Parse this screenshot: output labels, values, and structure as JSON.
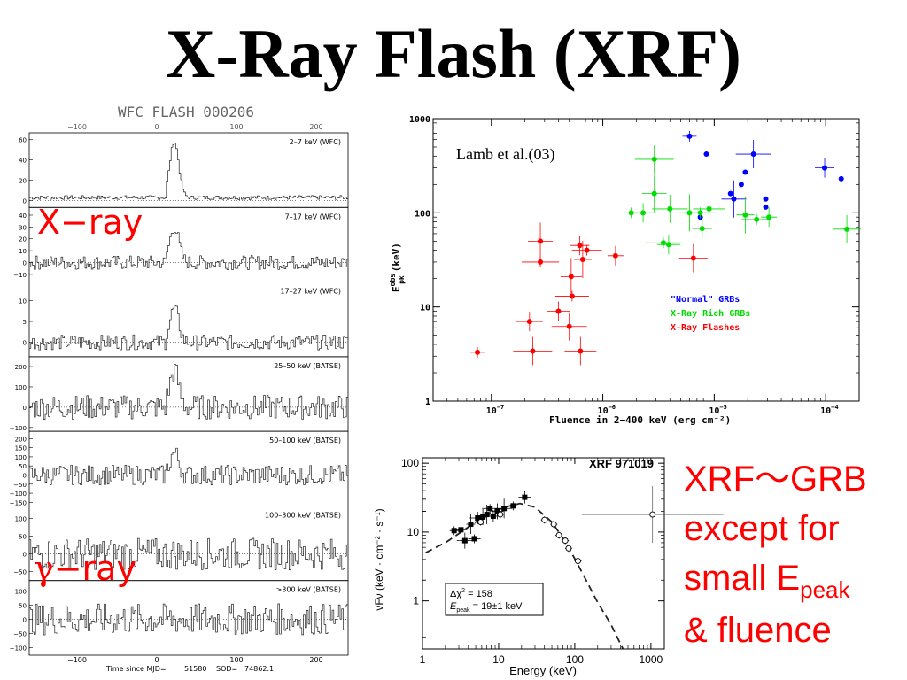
{
  "slide": {
    "title": "X-Ray Flash (XRF)",
    "label_xray": "X−ray",
    "label_gamma_symbol": "γ",
    "label_gamma_suffix": "−ray",
    "side_line1": "XRF〜GRB",
    "side_line2": "except for",
    "side_line3_main": "small E",
    "side_line3_sub": "peak",
    "side_line4": "& fluence"
  },
  "chart_data": [
    {
      "type": "line",
      "title": "WFC_FLASH_000206",
      "xlabel_prefix": "Time since MJD=",
      "xlabel_mjd": "51580",
      "xlabel_sod_label": "SOD=",
      "xlabel_sod": "74862.1",
      "x_ticks_top": [
        "−100",
        "0",
        "100",
        "200"
      ],
      "x_ticks_bottom": [
        "−100",
        "0",
        "100",
        "200"
      ],
      "xlim": [
        -160,
        240
      ],
      "panels": [
        {
          "name": "2–7 keV (WFC)",
          "yticks": [
            "60",
            "40",
            "20",
            "0"
          ],
          "ylim": [
            -5,
            65
          ],
          "noise": 2,
          "peak": 55,
          "base": 3
        },
        {
          "name": "7–17 keV (WFC)",
          "yticks": [
            "40",
            "30",
            "20",
            "10",
            "0",
            "−10"
          ],
          "ylim": [
            -15,
            45
          ],
          "noise": 6,
          "peak": 30,
          "base": 0
        },
        {
          "name": "17–27 keV (WFC)",
          "yticks": [
            "10",
            "5",
            "0"
          ],
          "ylim": [
            -3,
            14
          ],
          "noise": 1.8,
          "peak": 8,
          "base": 0
        },
        {
          "name": "25–50 keV (BATSE)",
          "yticks": [
            "200",
            "100",
            "0",
            "−100"
          ],
          "ylim": [
            -110,
            240
          ],
          "noise": 60,
          "peak": 180,
          "base": 0
        },
        {
          "name": "50–100 keV (BATSE)",
          "yticks": [
            "200",
            "150",
            "100",
            "50",
            "0",
            "−50",
            "−100",
            "−150"
          ],
          "ylim": [
            -160,
            230
          ],
          "noise": 55,
          "peak": 120,
          "base": 0
        },
        {
          "name": "100–300 keV (BATSE)",
          "yticks": [
            "100",
            "50",
            "0",
            "−50"
          ],
          "ylim": [
            -70,
            130
          ],
          "noise": 45,
          "peak": 0,
          "base": 0
        },
        {
          "name": ">300 keV (BATSE)",
          "yticks": [
            "100",
            "50",
            "0",
            "−50",
            "−100"
          ],
          "ylim": [
            -120,
            130
          ],
          "noise": 55,
          "peak": 0,
          "base": 0
        }
      ]
    },
    {
      "type": "scatter",
      "annotation": "Lamb et  al.(03)",
      "xlabel": "Fluence in 2−400 keV (erg cm⁻²)",
      "ylabel": "E",
      "ylabel_sup": "obs",
      "ylabel_sub": "pk",
      "ylabel_unit": "(keV)",
      "log_x": true,
      "log_y": true,
      "xlim": [
        3e-08,
        0.0002
      ],
      "ylim": [
        1,
        1000
      ],
      "x_ticks": [
        {
          "v": 1e-07,
          "base": "10",
          "exp": "−7"
        },
        {
          "v": 1e-06,
          "base": "10",
          "exp": "−6"
        },
        {
          "v": 1e-05,
          "base": "10",
          "exp": "−5"
        },
        {
          "v": 0.0001,
          "base": "10",
          "exp": "−4"
        }
      ],
      "y_ticks": [
        {
          "v": 1,
          "label": "1"
        },
        {
          "v": 10,
          "label": "10"
        },
        {
          "v": 100,
          "label": "100"
        },
        {
          "v": 1000,
          "label": "1000"
        }
      ],
      "series": [
        {
          "name": "\"Normal\" GRBs",
          "color": "#0000ff",
          "points": [
            [
              6e-06,
              650,
              7.5e-06,
              400
            ],
            [
              8.5e-06,
              420,
              9.3e-06,
              400
            ],
            [
              1.4e-05,
              160,
              1.52e-05,
              160
            ],
            [
              1.5e-05,
              140,
              1.6e-05,
              140
            ],
            [
              1.75e-05,
              200,
              1.85e-05,
              200
            ],
            [
              1.9e-05,
              270,
              2e-05,
              270
            ],
            [
              2.25e-05,
              420,
              2.4e-05,
              420
            ],
            [
              2.9e-05,
              140,
              3e-05,
              140
            ],
            [
              2.9e-05,
              115,
              3e-05,
              115
            ],
            [
              9.8e-05,
              300,
              0.000102,
              300
            ],
            [
              0.000138,
              230,
              0.000142,
              230
            ],
            [
              7.5e-06,
              90,
              7.8e-06,
              90
            ]
          ]
        },
        {
          "name": "X-Ray Rich GRBs",
          "color": "#00dd00",
          "points": [
            [
              1.8e-06,
              100
            ],
            [
              2.3e-06,
              100
            ],
            [
              2.9e-06,
              370
            ],
            [
              2.9e-06,
              160
            ],
            [
              3.5e-06,
              48
            ],
            [
              3.9e-06,
              46
            ],
            [
              4e-06,
              110
            ],
            [
              6e-06,
              100
            ],
            [
              7.5e-06,
              100
            ],
            [
              7.8e-06,
              68
            ],
            [
              9e-06,
              110
            ],
            [
              1.9e-05,
              95
            ],
            [
              2.4e-05,
              85
            ],
            [
              3.1e-05,
              90
            ],
            [
              0.000155,
              67
            ]
          ]
        },
        {
          "name": "X-Ray Flashes",
          "color": "#ff0000",
          "points": [
            [
              7.5e-08,
              3.3
            ],
            [
              2.2e-07,
              7
            ],
            [
              2.35e-07,
              3.4
            ],
            [
              2.75e-07,
              50
            ],
            [
              2.75e-07,
              30
            ],
            [
              4e-07,
              9
            ],
            [
              5e-07,
              6.2
            ],
            [
              5.2e-07,
              21
            ],
            [
              5.3e-07,
              13
            ],
            [
              6.2e-07,
              45
            ],
            [
              6.3e-07,
              3.4
            ],
            [
              6.6e-07,
              32
            ],
            [
              7.2e-07,
              40
            ],
            [
              1.3e-06,
              35
            ],
            [
              6.5e-06,
              33
            ]
          ]
        }
      ]
    },
    {
      "type": "scatter",
      "title": "XRF 971019",
      "xlabel": "Energy (keV)",
      "ylabel": "νFν  (keV · cm⁻² · s⁻¹)",
      "log_x": true,
      "log_y": true,
      "xlim": [
        1,
        1500
      ],
      "ylim": [
        0.2,
        120
      ],
      "x_ticks": [
        {
          "v": 1,
          "label": "1"
        },
        {
          "v": 10,
          "label": "10"
        },
        {
          "v": 100,
          "label": "100"
        },
        {
          "v": 1000,
          "label": "1000"
        }
      ],
      "y_ticks": [
        {
          "v": 1,
          "label": "1"
        },
        {
          "v": 10,
          "label": "10"
        },
        {
          "v": 100,
          "label": "100"
        }
      ],
      "legend_line1_a": "Δχ",
      "legend_line1_b": "2",
      "legend_line1_c": " = 158",
      "legend_line2_a": "E",
      "legend_line2_b": "peak",
      "legend_line2_c": " = 19±1 keV",
      "series": [
        {
          "name": "filled",
          "points": [
            [
              2.6,
              10.5
            ],
            [
              3.2,
              10.8
            ],
            [
              3.6,
              7.5
            ],
            [
              4.3,
              13
            ],
            [
              4.8,
              8
            ],
            [
              5.3,
              16
            ],
            [
              6.2,
              16.5
            ],
            [
              7.0,
              18
            ],
            [
              7.7,
              22
            ],
            [
              8.5,
              17
            ],
            [
              9.6,
              20
            ],
            [
              11.8,
              22
            ],
            [
              15.5,
              24
            ],
            [
              22,
              32
            ]
          ]
        },
        {
          "name": "open",
          "points": [
            [
              5.8,
              14
            ],
            [
              10.5,
              18
            ],
            [
              40,
              15
            ],
            [
              53,
              13
            ],
            [
              62,
              9
            ],
            [
              75,
              7.5
            ],
            [
              83,
              5.8
            ],
            [
              110,
              3.8
            ],
            [
              1050,
              18
            ]
          ]
        },
        {
          "name": "model",
          "points": [
            [
              1.1,
              5
            ],
            [
              1.5,
              6
            ],
            [
              2,
              7
            ],
            [
              3,
              9.5
            ],
            [
              5,
              14
            ],
            [
              8,
              19
            ],
            [
              12,
              23
            ],
            [
              19,
              26
            ],
            [
              30,
              23
            ],
            [
              50,
              14
            ],
            [
              80,
              6.5
            ],
            [
              120,
              2.8
            ],
            [
              200,
              0.95
            ],
            [
              300,
              0.45
            ],
            [
              430,
              0.2
            ]
          ]
        }
      ]
    }
  ]
}
